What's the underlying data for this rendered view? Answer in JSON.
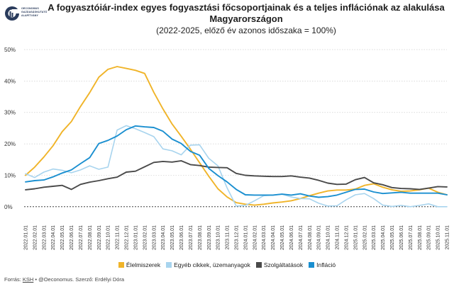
{
  "logo": {
    "lines": [
      "OECONOMUS",
      "GAZDASÁGKUTATÓ",
      "ALAPÍTVÁNY"
    ]
  },
  "header": {
    "title_line1": "A fogyasztóiár-index egyes fogyasztási főcsoportjainak és a teljes inflációnak az alakulása",
    "title_line2": "Magyarországon",
    "subtitle": "(2022-2025, előző év azonos időszaka = 100%)"
  },
  "footer": {
    "source_prefix": "Forrás:",
    "source_link": "KSH",
    "source_rest": "• @Oeconomus. Szerző: Erdélyi Dóra"
  },
  "chart_data": {
    "type": "line",
    "x": [
      "2022.01.01",
      "2022.02.01",
      "2022.03.01",
      "2022.04.01",
      "2022.05.01",
      "2022.06.01",
      "2022.07.01",
      "2022.08.01",
      "2022.09.01",
      "2022.10.01",
      "2022.11.01",
      "2022.12.01",
      "2023.01.01",
      "2023.02.01",
      "2023.03.01",
      "2023.04.01",
      "2023.05.01",
      "2023.06.01",
      "2023.07.01",
      "2023.08.01",
      "2023.09.01",
      "2023.10.01",
      "2023.11.01",
      "2023.12.01",
      "2024.01.01",
      "2024.02.01",
      "2024.03.01",
      "2024.04.01",
      "2024.05.01",
      "2024.06.01",
      "2024.07.01",
      "2024.08.01",
      "2024.09.01",
      "2024.10.01",
      "2024.11.01",
      "2024.12.01",
      "2025.01.01",
      "2025.02.01",
      "2025.03.01",
      "2025.04.01",
      "2025.05.01",
      "2025.06.01",
      "2025.07.01",
      "2025.08.01",
      "2025.09.01",
      "2025.10.01",
      "2025.11.01"
    ],
    "yticks": [
      "0%",
      "10%",
      "20%",
      "30%",
      "40%",
      "50%"
    ],
    "ylim": [
      -5,
      50
    ],
    "baseline": 0,
    "series": [
      {
        "name": "Élelmiszerek",
        "color": "#f0b429",
        "values": [
          10.0,
          12.6,
          15.8,
          19.4,
          23.9,
          27.1,
          31.9,
          36.3,
          41.2,
          43.7,
          44.6,
          44.0,
          43.4,
          42.4,
          36.4,
          31.1,
          26.3,
          22.4,
          18.3,
          14.0,
          9.7,
          5.7,
          3.1,
          1.3,
          0.8,
          0.5,
          0.8,
          1.2,
          1.5,
          1.9,
          2.6,
          3.5,
          4.3,
          5.0,
          5.3,
          5.3,
          5.6,
          6.8,
          7.3,
          6.2,
          5.4,
          4.9,
          5.0,
          5.4,
          5.9,
          4.6,
          3.8
        ]
      },
      {
        "name": "Egyéb cikkek, üzemanyagok",
        "color": "#a8d4ee",
        "values": [
          10.5,
          9.3,
          11.0,
          12.0,
          11.6,
          10.8,
          11.7,
          13.0,
          11.9,
          12.6,
          24.4,
          25.8,
          24.8,
          23.6,
          22.3,
          18.4,
          17.8,
          16.5,
          19.6,
          19.7,
          15.4,
          13.0,
          6.0,
          0.2,
          0.4,
          1.9,
          3.5,
          3.7,
          4.0,
          3.1,
          2.6,
          2.5,
          1.1,
          0.2,
          0.3,
          2.2,
          3.8,
          4.2,
          2.6,
          0.5,
          0.1,
          0.4,
          0.0,
          0.4,
          0.9,
          0.0,
          0.0
        ]
      },
      {
        "name": "Szolgáltatások",
        "color": "#4a4a4a",
        "values": [
          5.4,
          5.7,
          6.2,
          6.5,
          6.8,
          5.5,
          7.1,
          7.8,
          8.3,
          8.9,
          9.4,
          11.0,
          11.3,
          12.7,
          14.1,
          14.4,
          14.2,
          14.6,
          13.4,
          13.1,
          12.6,
          12.5,
          12.4,
          10.6,
          10.0,
          9.8,
          9.7,
          9.6,
          9.6,
          9.8,
          9.4,
          9.1,
          8.4,
          7.5,
          7.1,
          7.2,
          8.6,
          9.3,
          7.6,
          7.0,
          6.1,
          5.8,
          5.7,
          5.5,
          5.9,
          6.4,
          6.3
        ]
      },
      {
        "name": "Infláció",
        "color": "#1a8fd0",
        "values": [
          7.9,
          8.3,
          8.5,
          9.5,
          10.7,
          11.7,
          13.7,
          15.6,
          20.1,
          21.1,
          22.5,
          24.5,
          25.7,
          25.4,
          25.2,
          24.0,
          21.5,
          20.1,
          17.6,
          16.4,
          12.2,
          9.9,
          7.9,
          5.5,
          3.8,
          3.7,
          3.7,
          3.7,
          4.0,
          3.7,
          4.1,
          3.4,
          3.0,
          3.2,
          3.7,
          4.6,
          5.5,
          5.6,
          4.7,
          4.2,
          4.4,
          4.6,
          4.3,
          4.3,
          4.3,
          4.3,
          3.8
        ]
      }
    ]
  }
}
